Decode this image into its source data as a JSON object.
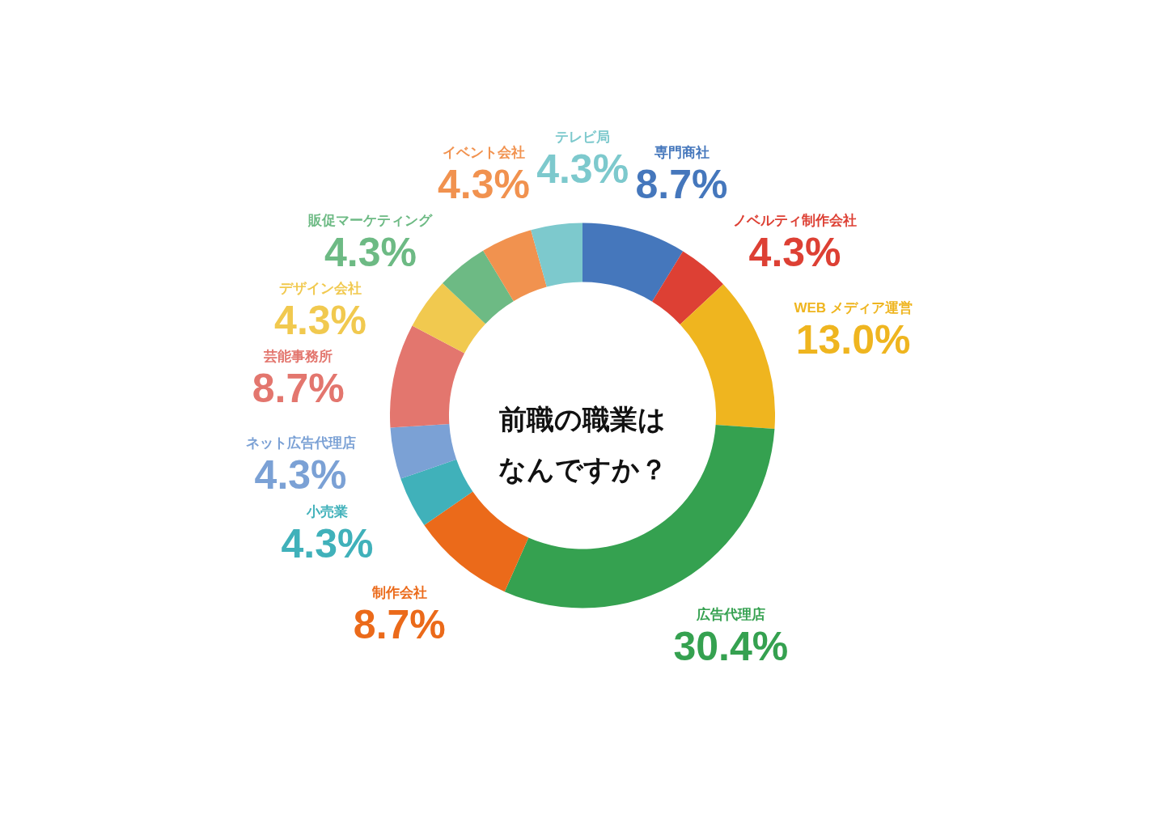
{
  "chart_data": {
    "type": "donut",
    "title": "前職の職業はなんですか？",
    "categories": [
      "専門商社",
      "ノベルティ制作会社",
      "WEB メディア運営",
      "広告代理店",
      "制作会社",
      "小売業",
      "ネット広告代理店",
      "芸能事務所",
      "デザイン会社",
      "販促マーケティング",
      "イベント会社",
      "テレビ局"
    ],
    "values": [
      8.7,
      4.3,
      13.0,
      30.4,
      8.7,
      4.3,
      4.3,
      8.7,
      4.3,
      4.3,
      4.3,
      4.3
    ],
    "value_labels": [
      "8.7%",
      "4.3%",
      "13.0%",
      "30.4%",
      "8.7%",
      "4.3%",
      "4.3%",
      "8.7%",
      "4.3%",
      "4.3%",
      "4.3%",
      "4.3%"
    ],
    "colors": [
      "#4577bc",
      "#dd4034",
      "#efb51f",
      "#35a150",
      "#eb6a1a",
      "#40b1ba",
      "#7ba1d5",
      "#e3766e",
      "#f1c94f",
      "#6dba84",
      "#f1924f",
      "#7dc9cd"
    ]
  }
}
